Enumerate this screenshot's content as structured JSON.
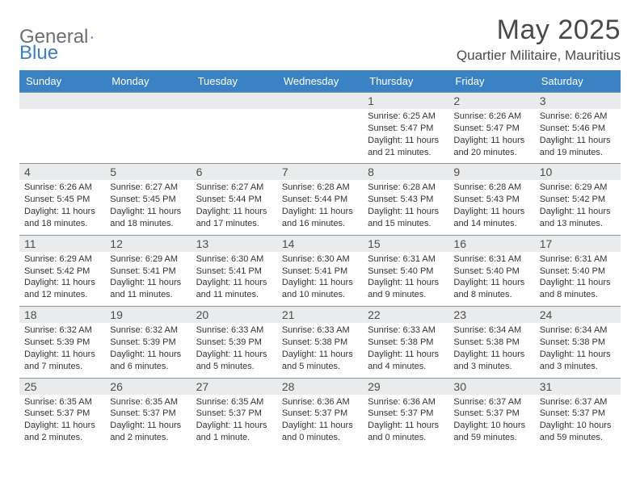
{
  "brand": {
    "part1": "General",
    "part2": "Blue"
  },
  "title": "May 2025",
  "location": "Quartier Militaire, Mauritius",
  "colors": {
    "header_bg": "#3b82c4",
    "header_text": "#ffffff",
    "band_bg": "#e9ebec",
    "rule": "#8b959a",
    "brand_gray": "#6a6f71",
    "brand_blue": "#3b7fc4"
  },
  "day_names": [
    "Sunday",
    "Monday",
    "Tuesday",
    "Wednesday",
    "Thursday",
    "Friday",
    "Saturday"
  ],
  "weeks": [
    [
      null,
      null,
      null,
      null,
      {
        "n": "1",
        "sr": "6:25 AM",
        "ss": "5:47 PM",
        "dl": "11 hours and 21 minutes."
      },
      {
        "n": "2",
        "sr": "6:26 AM",
        "ss": "5:47 PM",
        "dl": "11 hours and 20 minutes."
      },
      {
        "n": "3",
        "sr": "6:26 AM",
        "ss": "5:46 PM",
        "dl": "11 hours and 19 minutes."
      }
    ],
    [
      {
        "n": "4",
        "sr": "6:26 AM",
        "ss": "5:45 PM",
        "dl": "11 hours and 18 minutes."
      },
      {
        "n": "5",
        "sr": "6:27 AM",
        "ss": "5:45 PM",
        "dl": "11 hours and 18 minutes."
      },
      {
        "n": "6",
        "sr": "6:27 AM",
        "ss": "5:44 PM",
        "dl": "11 hours and 17 minutes."
      },
      {
        "n": "7",
        "sr": "6:28 AM",
        "ss": "5:44 PM",
        "dl": "11 hours and 16 minutes."
      },
      {
        "n": "8",
        "sr": "6:28 AM",
        "ss": "5:43 PM",
        "dl": "11 hours and 15 minutes."
      },
      {
        "n": "9",
        "sr": "6:28 AM",
        "ss": "5:43 PM",
        "dl": "11 hours and 14 minutes."
      },
      {
        "n": "10",
        "sr": "6:29 AM",
        "ss": "5:42 PM",
        "dl": "11 hours and 13 minutes."
      }
    ],
    [
      {
        "n": "11",
        "sr": "6:29 AM",
        "ss": "5:42 PM",
        "dl": "11 hours and 12 minutes."
      },
      {
        "n": "12",
        "sr": "6:29 AM",
        "ss": "5:41 PM",
        "dl": "11 hours and 11 minutes."
      },
      {
        "n": "13",
        "sr": "6:30 AM",
        "ss": "5:41 PM",
        "dl": "11 hours and 11 minutes."
      },
      {
        "n": "14",
        "sr": "6:30 AM",
        "ss": "5:41 PM",
        "dl": "11 hours and 10 minutes."
      },
      {
        "n": "15",
        "sr": "6:31 AM",
        "ss": "5:40 PM",
        "dl": "11 hours and 9 minutes."
      },
      {
        "n": "16",
        "sr": "6:31 AM",
        "ss": "5:40 PM",
        "dl": "11 hours and 8 minutes."
      },
      {
        "n": "17",
        "sr": "6:31 AM",
        "ss": "5:40 PM",
        "dl": "11 hours and 8 minutes."
      }
    ],
    [
      {
        "n": "18",
        "sr": "6:32 AM",
        "ss": "5:39 PM",
        "dl": "11 hours and 7 minutes."
      },
      {
        "n": "19",
        "sr": "6:32 AM",
        "ss": "5:39 PM",
        "dl": "11 hours and 6 minutes."
      },
      {
        "n": "20",
        "sr": "6:33 AM",
        "ss": "5:39 PM",
        "dl": "11 hours and 5 minutes."
      },
      {
        "n": "21",
        "sr": "6:33 AM",
        "ss": "5:38 PM",
        "dl": "11 hours and 5 minutes."
      },
      {
        "n": "22",
        "sr": "6:33 AM",
        "ss": "5:38 PM",
        "dl": "11 hours and 4 minutes."
      },
      {
        "n": "23",
        "sr": "6:34 AM",
        "ss": "5:38 PM",
        "dl": "11 hours and 3 minutes."
      },
      {
        "n": "24",
        "sr": "6:34 AM",
        "ss": "5:38 PM",
        "dl": "11 hours and 3 minutes."
      }
    ],
    [
      {
        "n": "25",
        "sr": "6:35 AM",
        "ss": "5:37 PM",
        "dl": "11 hours and 2 minutes."
      },
      {
        "n": "26",
        "sr": "6:35 AM",
        "ss": "5:37 PM",
        "dl": "11 hours and 2 minutes."
      },
      {
        "n": "27",
        "sr": "6:35 AM",
        "ss": "5:37 PM",
        "dl": "11 hours and 1 minute."
      },
      {
        "n": "28",
        "sr": "6:36 AM",
        "ss": "5:37 PM",
        "dl": "11 hours and 0 minutes."
      },
      {
        "n": "29",
        "sr": "6:36 AM",
        "ss": "5:37 PM",
        "dl": "11 hours and 0 minutes."
      },
      {
        "n": "30",
        "sr": "6:37 AM",
        "ss": "5:37 PM",
        "dl": "10 hours and 59 minutes."
      },
      {
        "n": "31",
        "sr": "6:37 AM",
        "ss": "5:37 PM",
        "dl": "10 hours and 59 minutes."
      }
    ]
  ],
  "labels": {
    "sunrise": "Sunrise:",
    "sunset": "Sunset:",
    "daylight": "Daylight:"
  }
}
